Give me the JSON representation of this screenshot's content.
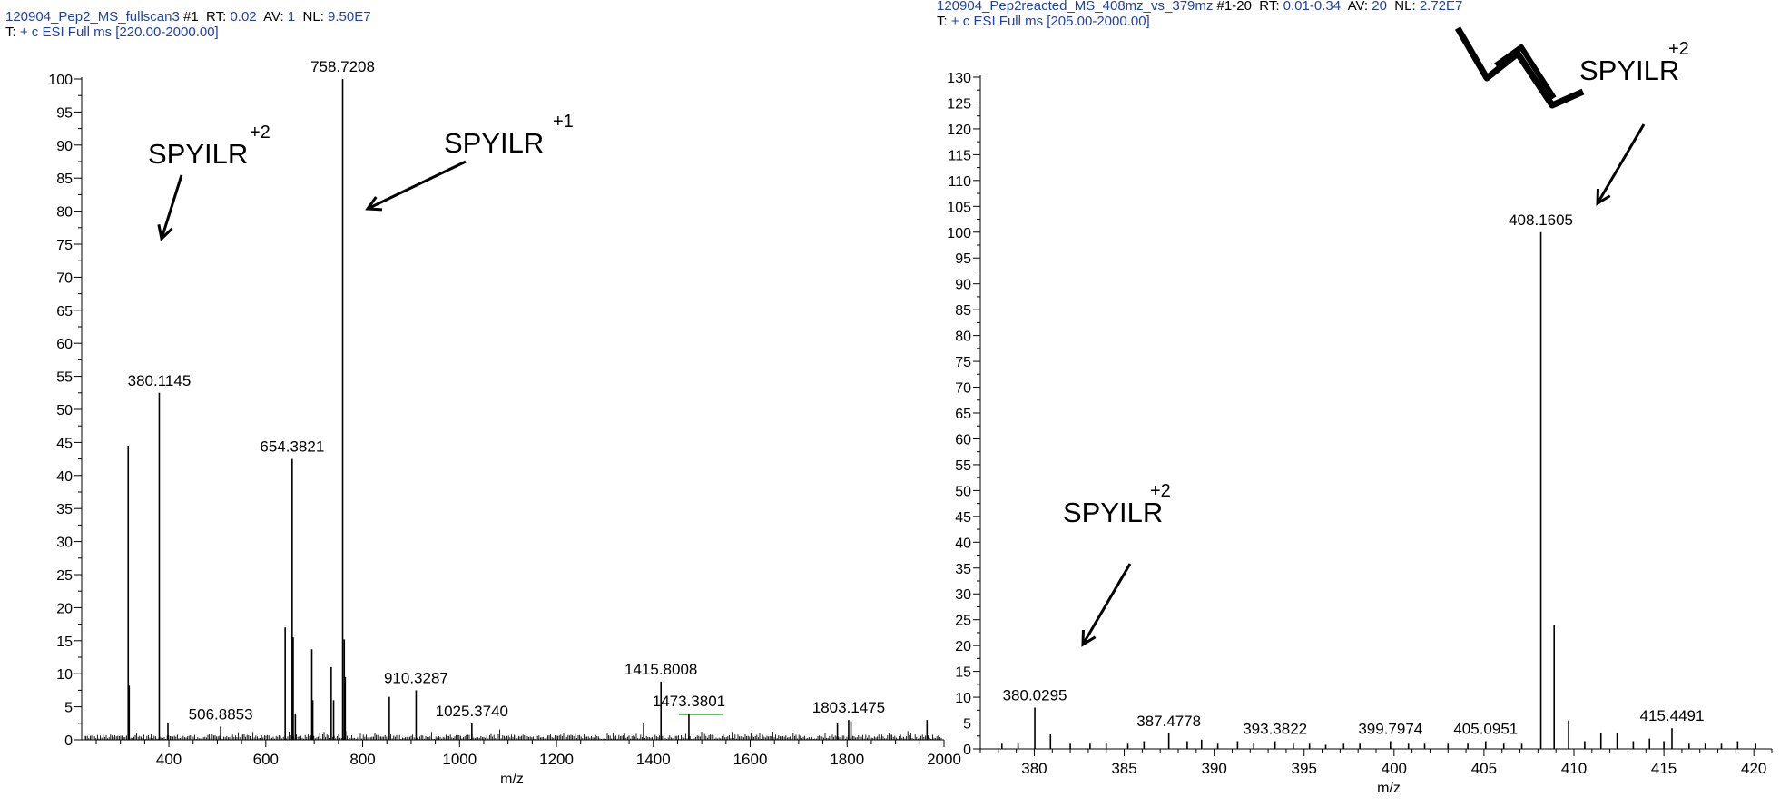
{
  "colors": {
    "header_value": "#1f3fb0",
    "header_key": "#000000",
    "trace": "#000000",
    "noise_accent": "#00a000"
  },
  "left_header": {
    "line1": {
      "name": "120904_Pep2_MS_fullscan3",
      "scan": "#1",
      "rt_label": "RT:",
      "rt": "0.02",
      "av_label": "AV:",
      "av": "1",
      "nl_label": "NL:",
      "nl": "9.50E7"
    },
    "line2": {
      "t_label": "T:",
      "filter": "+ c ESI Full ms [220.00-2000.00]"
    }
  },
  "right_header": {
    "line1": {
      "name": "120904_Pep2reacted_MS_408mz_vs_379mz",
      "scan": "#1-20",
      "rt_label": "RT:",
      "rt": "0.01-0.34",
      "av_label": "AV:",
      "av": "20",
      "nl_label": "NL:",
      "nl": "2.72E7"
    },
    "line2": {
      "t_label": "T:",
      "filter": "+ c ESI Full ms [205.00-2000.00]"
    }
  },
  "chart_data": [
    {
      "type": "bar",
      "xlabel": "m/z",
      "ylabel": "",
      "xlim": [
        220,
        2000
      ],
      "ylim": [
        0,
        100
      ],
      "x_ticks": [
        400,
        600,
        800,
        1000,
        1200,
        1400,
        1600,
        1800,
        2000
      ],
      "y_ticks": [
        0,
        5,
        10,
        15,
        20,
        25,
        30,
        35,
        40,
        45,
        50,
        55,
        60,
        65,
        70,
        75,
        80,
        85,
        90,
        95,
        100
      ],
      "peaks": [
        {
          "mz": 316.0,
          "intensity": 44.5
        },
        {
          "mz": 318.0,
          "intensity": 8.2
        },
        {
          "mz": 380.1145,
          "intensity": 52.5,
          "label": "380.1145"
        },
        {
          "mz": 398.0,
          "intensity": 2.5
        },
        {
          "mz": 506.8853,
          "intensity": 2.0,
          "label": "506.8853"
        },
        {
          "mz": 640.0,
          "intensity": 17.0
        },
        {
          "mz": 654.3821,
          "intensity": 42.5,
          "label": "654.3821"
        },
        {
          "mz": 656.5,
          "intensity": 15.5
        },
        {
          "mz": 661.0,
          "intensity": 4.0
        },
        {
          "mz": 695.0,
          "intensity": 13.7
        },
        {
          "mz": 697.0,
          "intensity": 6.0
        },
        {
          "mz": 735.0,
          "intensity": 11.0
        },
        {
          "mz": 740.0,
          "intensity": 6.0
        },
        {
          "mz": 758.7208,
          "intensity": 100.0,
          "label": "758.7208"
        },
        {
          "mz": 762.0,
          "intensity": 15.2
        },
        {
          "mz": 764.0,
          "intensity": 9.5
        },
        {
          "mz": 855.0,
          "intensity": 6.5
        },
        {
          "mz": 910.3287,
          "intensity": 7.5,
          "label": "910.3287"
        },
        {
          "mz": 1025.374,
          "intensity": 2.5,
          "label": "1025.3740"
        },
        {
          "mz": 1380.0,
          "intensity": 2.5
        },
        {
          "mz": 1415.8008,
          "intensity": 8.8,
          "label": "1415.8008"
        },
        {
          "mz": 1473.3801,
          "intensity": 4.0,
          "label": "1473.3801"
        },
        {
          "mz": 1780.0,
          "intensity": 2.5
        },
        {
          "mz": 1803.1475,
          "intensity": 3.0,
          "label": "1803.1475"
        },
        {
          "mz": 1808.0,
          "intensity": 2.8
        },
        {
          "mz": 1965.0,
          "intensity": 3.0
        }
      ],
      "annotations": [
        {
          "text": "SPYILR",
          "charge": "+2",
          "points_to_mz": 380.1145
        },
        {
          "text": "SPYILR",
          "charge": "+1",
          "points_to_mz": 758.7208
        }
      ]
    },
    {
      "type": "bar",
      "xlabel": "m/z",
      "ylabel": "",
      "xlim": [
        377,
        421
      ],
      "ylim": [
        0,
        130
      ],
      "x_ticks": [
        380,
        385,
        390,
        395,
        400,
        405,
        410,
        415,
        420
      ],
      "y_ticks": [
        0,
        5,
        10,
        15,
        20,
        25,
        30,
        35,
        40,
        45,
        50,
        55,
        60,
        65,
        70,
        75,
        80,
        85,
        90,
        95,
        100,
        105,
        110,
        115,
        120,
        125,
        130
      ],
      "peaks": [
        {
          "mz": 378.2,
          "intensity": 1.0
        },
        {
          "mz": 379.1,
          "intensity": 1.0
        },
        {
          "mz": 380.0295,
          "intensity": 8.0,
          "label": "380.0295"
        },
        {
          "mz": 380.9,
          "intensity": 2.8
        },
        {
          "mz": 382.0,
          "intensity": 1.0
        },
        {
          "mz": 383.1,
          "intensity": 1.0
        },
        {
          "mz": 384.0,
          "intensity": 1.2
        },
        {
          "mz": 385.2,
          "intensity": 1.0
        },
        {
          "mz": 386.1,
          "intensity": 1.5
        },
        {
          "mz": 387.4778,
          "intensity": 3.0,
          "label": "387.4778"
        },
        {
          "mz": 388.5,
          "intensity": 1.5
        },
        {
          "mz": 389.3,
          "intensity": 1.8
        },
        {
          "mz": 390.2,
          "intensity": 1.0
        },
        {
          "mz": 391.3,
          "intensity": 1.5
        },
        {
          "mz": 392.2,
          "intensity": 1.2
        },
        {
          "mz": 393.3822,
          "intensity": 1.5,
          "label": "393.3822"
        },
        {
          "mz": 394.4,
          "intensity": 1.0
        },
        {
          "mz": 395.3,
          "intensity": 1.0
        },
        {
          "mz": 396.2,
          "intensity": 0.8
        },
        {
          "mz": 397.2,
          "intensity": 1.0
        },
        {
          "mz": 398.1,
          "intensity": 1.0
        },
        {
          "mz": 399.7974,
          "intensity": 1.5,
          "label": "399.7974"
        },
        {
          "mz": 400.8,
          "intensity": 1.0
        },
        {
          "mz": 401.7,
          "intensity": 1.0
        },
        {
          "mz": 403.0,
          "intensity": 1.0
        },
        {
          "mz": 404.1,
          "intensity": 1.0
        },
        {
          "mz": 405.0951,
          "intensity": 1.5,
          "label": "405.0951"
        },
        {
          "mz": 406.1,
          "intensity": 1.0
        },
        {
          "mz": 407.1,
          "intensity": 1.0
        },
        {
          "mz": 408.1605,
          "intensity": 100.0,
          "label": "408.1605"
        },
        {
          "mz": 408.9,
          "intensity": 24.0
        },
        {
          "mz": 409.7,
          "intensity": 5.5
        },
        {
          "mz": 410.6,
          "intensity": 1.5
        },
        {
          "mz": 411.5,
          "intensity": 3.0
        },
        {
          "mz": 412.4,
          "intensity": 3.0
        },
        {
          "mz": 413.3,
          "intensity": 1.5
        },
        {
          "mz": 414.2,
          "intensity": 2.0
        },
        {
          "mz": 415.0,
          "intensity": 1.5
        },
        {
          "mz": 415.4491,
          "intensity": 4.0,
          "label": "415.4491"
        },
        {
          "mz": 416.4,
          "intensity": 1.0
        },
        {
          "mz": 417.3,
          "intensity": 1.0
        },
        {
          "mz": 418.2,
          "intensity": 1.0
        },
        {
          "mz": 419.1,
          "intensity": 1.5
        },
        {
          "mz": 420.1,
          "intensity": 1.0
        }
      ],
      "annotations": [
        {
          "text": "SPYILR",
          "charge": "+2",
          "points_to_mz": 380.0295
        },
        {
          "text": "SPYILR",
          "charge": "+2",
          "points_to_mz": 408.1605
        }
      ]
    }
  ]
}
